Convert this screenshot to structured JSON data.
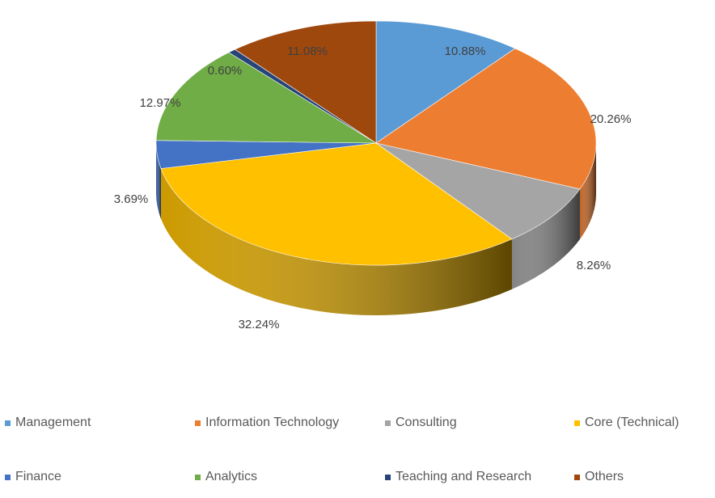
{
  "chart_data": {
    "type": "pie",
    "title": "",
    "categories": [
      "Management",
      "Information Technology",
      "Consulting",
      "Core (Technical)",
      "Finance",
      "Analytics",
      "Teaching and Research",
      "Others"
    ],
    "values": [
      10.88,
      20.26,
      8.26,
      32.24,
      3.69,
      12.97,
      0.6,
      11.08
    ],
    "labels": [
      "10.88%",
      "20.26%",
      "8.26%",
      "32.24%",
      "3.69%",
      "12.97%",
      "0.60%",
      "11.08%"
    ],
    "colors": [
      "#5B9BD5",
      "#ED7D31",
      "#A5A5A5",
      "#FFC000",
      "#4472C4",
      "#70AD47",
      "#264478",
      "#9E480E"
    ],
    "legend_position": "bottom",
    "style": "3d"
  }
}
